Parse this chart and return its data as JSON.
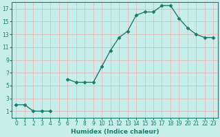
{
  "x": [
    0,
    1,
    2,
    3,
    4,
    5,
    6,
    7,
    8,
    9,
    10,
    11,
    12,
    13,
    14,
    15,
    16,
    17,
    18,
    19,
    20,
    21,
    22,
    23
  ],
  "y": [
    2,
    2,
    1,
    1,
    1,
    null,
    6,
    5.5,
    5.5,
    5.5,
    8,
    10.5,
    12.5,
    13.5,
    16,
    16.5,
    16.5,
    17.5,
    17.5,
    15.5,
    14,
    13,
    12.5,
    12.5
  ],
  "line_color": "#1a7a6e",
  "marker": "D",
  "marker_size": 2.5,
  "bg_color": "#c8eeec",
  "grid_color": "#e8b0b0",
  "tick_color": "#1a7a6e",
  "label_color": "#1a7a6e",
  "xlabel": "Humidex (Indice chaleur)",
  "xlim": [
    -0.5,
    23.5
  ],
  "ylim": [
    0,
    18
  ],
  "yticks": [
    1,
    3,
    5,
    7,
    9,
    11,
    13,
    15,
    17
  ],
  "xticks": [
    0,
    1,
    2,
    3,
    4,
    5,
    6,
    7,
    8,
    9,
    10,
    11,
    12,
    13,
    14,
    15,
    16,
    17,
    18,
    19,
    20,
    21,
    22,
    23
  ],
  "xlabel_fontsize": 6.5,
  "tick_fontsize": 5.5,
  "linewidth": 1.0
}
